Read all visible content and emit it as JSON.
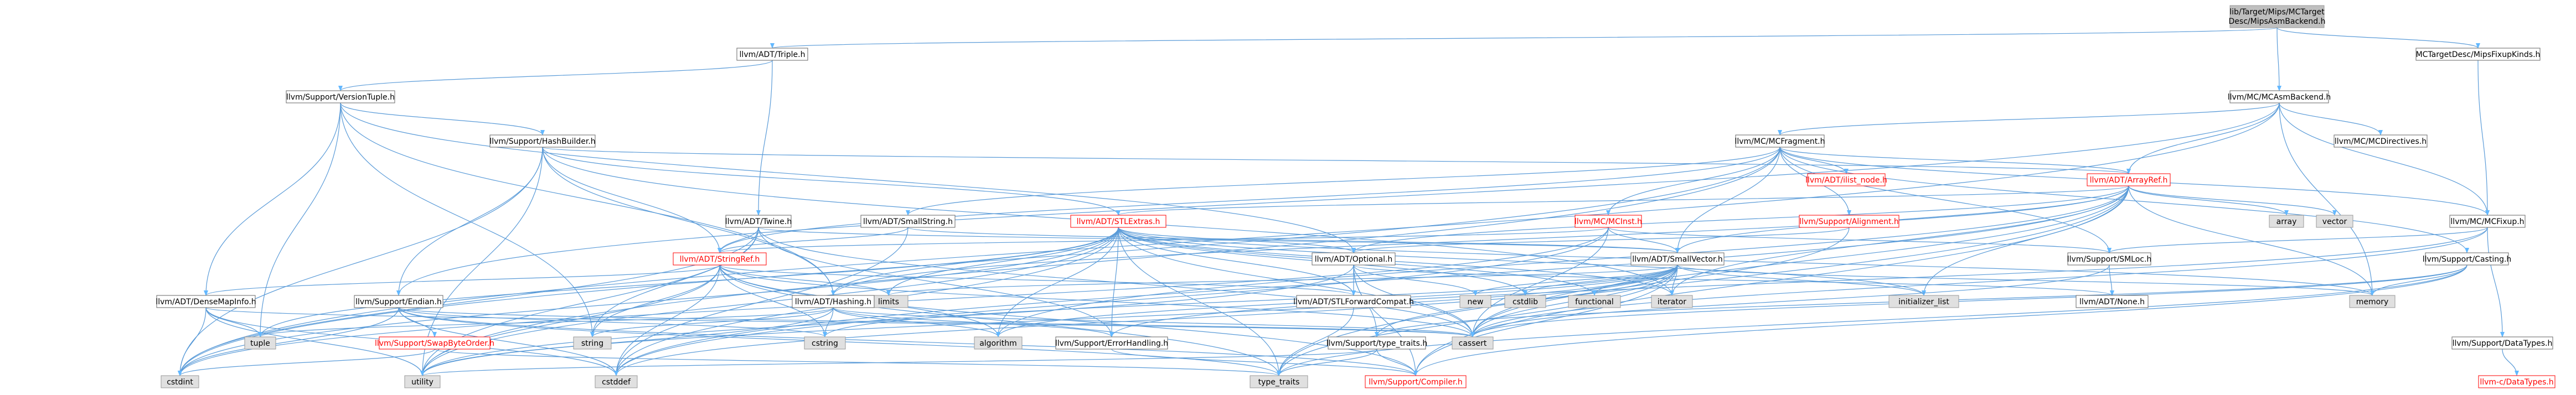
{
  "colors": {
    "edge": "#63b8ff",
    "edge_line": "#5a9bd8",
    "node_fill": "#ffffff",
    "node_border": "#666666",
    "root_fill": "#bfbfbf",
    "root_border": "#999999",
    "system_fill": "#e0e0e0",
    "system_border": "#999999",
    "text": "#000000",
    "red_text": "#ff0000",
    "red_border": "#ff0000"
  },
  "nodes": [
    {
      "id": "root",
      "label": "lib/Target/Mips/MCTarget\nDesc/MipsAsmBackend.h",
      "kind": "root"
    },
    {
      "id": "triple",
      "label": "llvm/ADT/Triple.h",
      "kind": "normal"
    },
    {
      "id": "fixupkinds",
      "label": "MCTargetDesc/MipsFixupKinds.h",
      "kind": "normal"
    },
    {
      "id": "vtuple",
      "label": "llvm/Support/VersionTuple.h",
      "kind": "normal"
    },
    {
      "id": "asmbackend",
      "label": "llvm/MC/MCAsmBackend.h",
      "kind": "normal"
    },
    {
      "id": "hashbuilder",
      "label": "llvm/Support/HashBuilder.h",
      "kind": "normal"
    },
    {
      "id": "mcfragment",
      "label": "llvm/MC/MCFragment.h",
      "kind": "normal"
    },
    {
      "id": "mcdirectives",
      "label": "llvm/MC/MCDirectives.h",
      "kind": "normal"
    },
    {
      "id": "ilistnode",
      "label": "llvm/ADT/ilist_node.h",
      "kind": "red"
    },
    {
      "id": "arrayref",
      "label": "llvm/ADT/ArrayRef.h",
      "kind": "red"
    },
    {
      "id": "twine",
      "label": "llvm/ADT/Twine.h",
      "kind": "normal"
    },
    {
      "id": "smallstring",
      "label": "llvm/ADT/SmallString.h",
      "kind": "normal"
    },
    {
      "id": "stlextras",
      "label": "llvm/ADT/STLExtras.h",
      "kind": "red"
    },
    {
      "id": "mcinst",
      "label": "llvm/MC/MCInst.h",
      "kind": "red"
    },
    {
      "id": "alignment",
      "label": "llvm/Support/Alignment.h",
      "kind": "red"
    },
    {
      "id": "array",
      "label": "array",
      "kind": "system"
    },
    {
      "id": "vector",
      "label": "vector",
      "kind": "system"
    },
    {
      "id": "mcfixup",
      "label": "llvm/MC/MCFixup.h",
      "kind": "normal"
    },
    {
      "id": "stringref",
      "label": "llvm/ADT/StringRef.h",
      "kind": "red"
    },
    {
      "id": "optional",
      "label": "llvm/ADT/Optional.h",
      "kind": "normal"
    },
    {
      "id": "smallvector",
      "label": "llvm/ADT/SmallVector.h",
      "kind": "normal"
    },
    {
      "id": "smloc",
      "label": "llvm/Support/SMLoc.h",
      "kind": "normal"
    },
    {
      "id": "casting",
      "label": "llvm/Support/Casting.h",
      "kind": "normal"
    },
    {
      "id": "densemapinfo",
      "label": "llvm/ADT/DenseMapInfo.h",
      "kind": "normal"
    },
    {
      "id": "endian",
      "label": "llvm/Support/Endian.h",
      "kind": "normal"
    },
    {
      "id": "limits",
      "label": "limits",
      "kind": "system"
    },
    {
      "id": "hashing",
      "label": "llvm/ADT/Hashing.h",
      "kind": "normal"
    },
    {
      "id": "stlfwd",
      "label": "llvm/ADT/STLForwardCompat.h",
      "kind": "normal"
    },
    {
      "id": "new",
      "label": "new",
      "kind": "system"
    },
    {
      "id": "cstdlib",
      "label": "cstdlib",
      "kind": "system"
    },
    {
      "id": "functional",
      "label": "functional",
      "kind": "system"
    },
    {
      "id": "iterator",
      "label": "iterator",
      "kind": "system"
    },
    {
      "id": "initlist",
      "label": "initializer_list",
      "kind": "system"
    },
    {
      "id": "none",
      "label": "llvm/ADT/None.h",
      "kind": "normal"
    },
    {
      "id": "memory",
      "label": "memory",
      "kind": "system"
    },
    {
      "id": "tuple",
      "label": "tuple",
      "kind": "system"
    },
    {
      "id": "swapbyte",
      "label": "llvm/Support/SwapByteOrder.h",
      "kind": "red"
    },
    {
      "id": "string",
      "label": "string",
      "kind": "system"
    },
    {
      "id": "cstring",
      "label": "cstring",
      "kind": "system"
    },
    {
      "id": "algorithm",
      "label": "algorithm",
      "kind": "system"
    },
    {
      "id": "errorhandling",
      "label": "llvm/Support/ErrorHandling.h",
      "kind": "normal"
    },
    {
      "id": "typetraitsh",
      "label": "llvm/Support/type_traits.h",
      "kind": "normal"
    },
    {
      "id": "cassert",
      "label": "cassert",
      "kind": "system"
    },
    {
      "id": "datatypes",
      "label": "llvm/Support/DataTypes.h",
      "kind": "normal"
    },
    {
      "id": "cstdint",
      "label": "cstdint",
      "kind": "system"
    },
    {
      "id": "utility",
      "label": "utility",
      "kind": "system"
    },
    {
      "id": "cstddef",
      "label": "cstddef",
      "kind": "system"
    },
    {
      "id": "typetraits",
      "label": "type_traits",
      "kind": "system"
    },
    {
      "id": "compiler",
      "label": "llvm/Support/Compiler.h",
      "kind": "red"
    },
    {
      "id": "cdatatypes",
      "label": "llvm-c/DataTypes.h",
      "kind": "red"
    }
  ],
  "edges": [
    [
      "root",
      "triple"
    ],
    [
      "root",
      "fixupkinds"
    ],
    [
      "root",
      "asmbackend"
    ],
    [
      "triple",
      "vtuple"
    ],
    [
      "triple",
      "twine"
    ],
    [
      "fixupkinds",
      "mcfixup"
    ],
    [
      "vtuple",
      "hashbuilder"
    ],
    [
      "vtuple",
      "densemapinfo"
    ],
    [
      "vtuple",
      "optional"
    ],
    [
      "vtuple",
      "string"
    ],
    [
      "vtuple",
      "tuple"
    ],
    [
      "vtuple",
      "hashing"
    ],
    [
      "asmbackend",
      "mcfragment"
    ],
    [
      "asmbackend",
      "mcdirectives"
    ],
    [
      "asmbackend",
      "mcfixup"
    ],
    [
      "asmbackend",
      "arrayref"
    ],
    [
      "asmbackend",
      "endian"
    ],
    [
      "asmbackend",
      "memory"
    ],
    [
      "asmbackend",
      "cstdint"
    ],
    [
      "hashbuilder",
      "arrayref"
    ],
    [
      "hashbuilder",
      "hashing"
    ],
    [
      "hashbuilder",
      "stlextras"
    ],
    [
      "hashbuilder",
      "stringref"
    ],
    [
      "hashbuilder",
      "endian"
    ],
    [
      "hashbuilder",
      "iterator"
    ],
    [
      "hashbuilder",
      "cstdint"
    ],
    [
      "hashbuilder",
      "utility"
    ],
    [
      "mcfragment",
      "ilistnode"
    ],
    [
      "mcfragment",
      "arrayref"
    ],
    [
      "mcfragment",
      "smallstring"
    ],
    [
      "mcfragment",
      "smallvector"
    ],
    [
      "mcfragment",
      "stringref"
    ],
    [
      "mcfragment",
      "mcfixup"
    ],
    [
      "mcfragment",
      "mcinst"
    ],
    [
      "mcfragment",
      "alignment"
    ],
    [
      "mcfragment",
      "smloc"
    ],
    [
      "mcfragment",
      "casting"
    ],
    [
      "mcfragment",
      "cstdint"
    ],
    [
      "mcfragment",
      "utility"
    ],
    [
      "arrayref",
      "hashing"
    ],
    [
      "arrayref",
      "smallvector"
    ],
    [
      "arrayref",
      "stlextras"
    ],
    [
      "arrayref",
      "compiler"
    ],
    [
      "arrayref",
      "algorithm"
    ],
    [
      "arrayref",
      "array"
    ],
    [
      "arrayref",
      "cassert"
    ],
    [
      "arrayref",
      "cstddef"
    ],
    [
      "arrayref",
      "initlist"
    ],
    [
      "arrayref",
      "iterator"
    ],
    [
      "arrayref",
      "memory"
    ],
    [
      "arrayref",
      "typetraits"
    ],
    [
      "arrayref",
      "vector"
    ],
    [
      "arrayref",
      "optional"
    ],
    [
      "twine",
      "smallvector"
    ],
    [
      "twine",
      "stringref"
    ],
    [
      "twine",
      "errorhandling"
    ],
    [
      "twine",
      "cassert"
    ],
    [
      "twine",
      "cstdint"
    ],
    [
      "twine",
      "string"
    ],
    [
      "twine",
      "utility"
    ],
    [
      "smallstring",
      "smallvector"
    ],
    [
      "smallstring",
      "stringref"
    ],
    [
      "smallstring",
      "cstddef"
    ],
    [
      "stlextras",
      "optional"
    ],
    [
      "stlextras",
      "stlfwd"
    ],
    [
      "stlextras",
      "hashing"
    ],
    [
      "stlextras",
      "errorhandling"
    ],
    [
      "stlextras",
      "algorithm"
    ],
    [
      "stlextras",
      "cassert"
    ],
    [
      "stlextras",
      "cstddef"
    ],
    [
      "stlextras",
      "cstdint"
    ],
    [
      "stlextras",
      "cstdlib"
    ],
    [
      "stlextras",
      "functional"
    ],
    [
      "stlextras",
      "initlist"
    ],
    [
      "stlextras",
      "iterator"
    ],
    [
      "stlextras",
      "limits"
    ],
    [
      "stlextras",
      "memory"
    ],
    [
      "stlextras",
      "tuple"
    ],
    [
      "stlextras",
      "typetraits"
    ],
    [
      "stlextras",
      "utility"
    ],
    [
      "mcinst",
      "smallvector"
    ],
    [
      "mcinst",
      "stringref"
    ],
    [
      "mcinst",
      "smloc"
    ],
    [
      "mcinst",
      "cassert"
    ],
    [
      "mcinst",
      "cstddef"
    ],
    [
      "mcinst",
      "cstdint"
    ],
    [
      "alignment",
      "optional"
    ],
    [
      "alignment",
      "cassert"
    ],
    [
      "mcfixup",
      "smloc"
    ],
    [
      "mcfixup",
      "datatypes"
    ],
    [
      "mcfixup",
      "errorhandling"
    ],
    [
      "mcfixup",
      "cassert"
    ],
    [
      "stringref",
      "stlfwd"
    ],
    [
      "stringref",
      "compiler"
    ],
    [
      "stringref",
      "algorithm"
    ],
    [
      "stringref",
      "cassert"
    ],
    [
      "stringref",
      "cstddef"
    ],
    [
      "stringref",
      "cstring"
    ],
    [
      "stringref",
      "limits"
    ],
    [
      "stringref",
      "string"
    ],
    [
      "stringref",
      "typetraits"
    ],
    [
      "stringref",
      "utility"
    ],
    [
      "stringref",
      "densemapinfo"
    ],
    [
      "optional",
      "none"
    ],
    [
      "optional",
      "stlfwd"
    ],
    [
      "optional",
      "compiler"
    ],
    [
      "optional",
      "typetraitsh"
    ],
    [
      "optional",
      "cassert"
    ],
    [
      "optional",
      "new"
    ],
    [
      "optional",
      "utility"
    ],
    [
      "smallvector",
      "compiler"
    ],
    [
      "smallvector",
      "typetraitsh"
    ],
    [
      "smallvector",
      "algorithm"
    ],
    [
      "smallvector",
      "cassert"
    ],
    [
      "smallvector",
      "cstddef"
    ],
    [
      "smallvector",
      "cstdlib"
    ],
    [
      "smallvector",
      "cstring"
    ],
    [
      "smallvector",
      "functional"
    ],
    [
      "smallvector",
      "initlist"
    ],
    [
      "smallvector",
      "iterator"
    ],
    [
      "smallvector",
      "limits"
    ],
    [
      "smallvector",
      "memory"
    ],
    [
      "smallvector",
      "new"
    ],
    [
      "smallvector",
      "typetraits"
    ],
    [
      "smallvector",
      "utility"
    ],
    [
      "smloc",
      "none"
    ],
    [
      "smloc",
      "cassert"
    ],
    [
      "casting",
      "compiler"
    ],
    [
      "casting",
      "typetraitsh"
    ],
    [
      "casting",
      "cassert"
    ],
    [
      "casting",
      "memory"
    ],
    [
      "casting",
      "typetraits"
    ],
    [
      "densemapinfo",
      "cassert"
    ],
    [
      "densemapinfo",
      "cstddef"
    ],
    [
      "densemapinfo",
      "cstdint"
    ],
    [
      "densemapinfo",
      "tuple"
    ],
    [
      "densemapinfo",
      "utility"
    ],
    [
      "endian",
      "swapbyte"
    ],
    [
      "endian",
      "compiler"
    ],
    [
      "endian",
      "cassert"
    ],
    [
      "endian",
      "cstddef"
    ],
    [
      "endian",
      "cstdint"
    ],
    [
      "endian",
      "cstring"
    ],
    [
      "endian",
      "typetraits"
    ],
    [
      "hashing",
      "errorhandling"
    ],
    [
      "hashing",
      "algorithm"
    ],
    [
      "hashing",
      "cassert"
    ],
    [
      "hashing",
      "cstring"
    ],
    [
      "hashing",
      "string"
    ],
    [
      "hashing",
      "tuple"
    ],
    [
      "hashing",
      "utility"
    ],
    [
      "stlfwd",
      "typetraits"
    ],
    [
      "swapbyte",
      "cstdint"
    ],
    [
      "swapbyte",
      "typetraits"
    ],
    [
      "errorhandling",
      "compiler"
    ],
    [
      "typetraitsh",
      "compiler"
    ],
    [
      "typetraitsh",
      "typetraits"
    ],
    [
      "typetraitsh",
      "utility"
    ],
    [
      "datatypes",
      "cdatatypes"
    ]
  ]
}
